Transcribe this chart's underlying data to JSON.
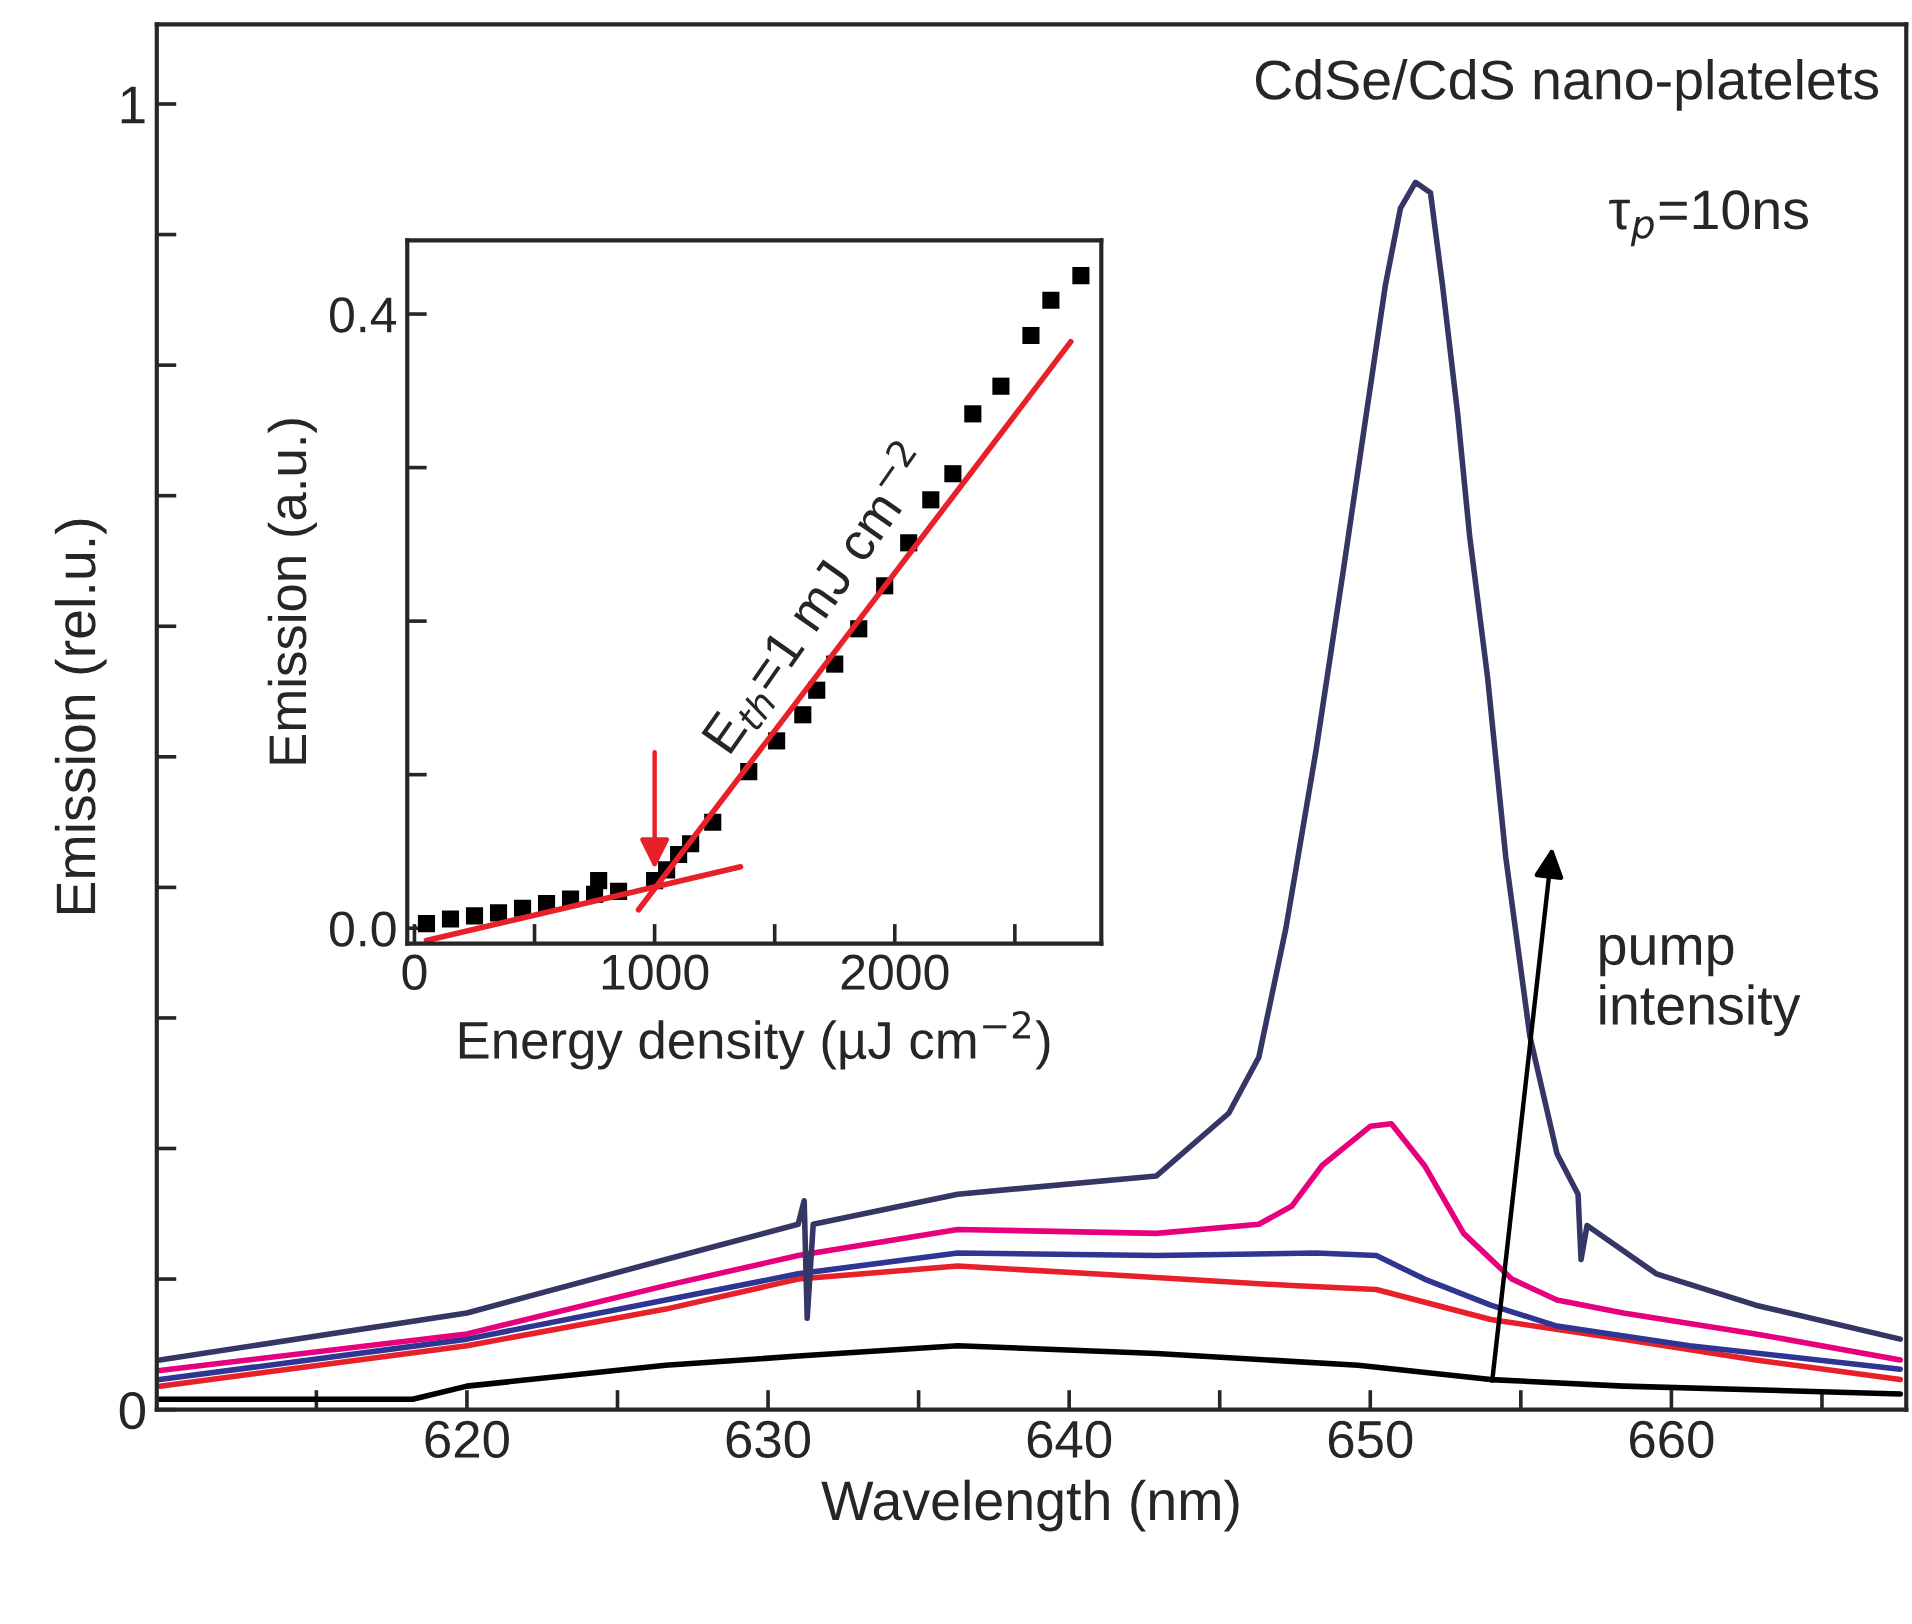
{
  "chart_data": [
    {
      "type": "line",
      "title": "CdSe/CdS nano-platelets",
      "xlabel": "Wavelength (nm)",
      "ylabel": "Emission (rel.u.)",
      "xlim": [
        609.7,
        667.8
      ],
      "xticks": [
        {
          "value": 615,
          "label": null
        },
        620,
        {
          "value": 625,
          "label": null
        },
        630,
        {
          "value": 635,
          "label": null
        },
        640,
        {
          "value": 645,
          "label": null
        },
        650,
        {
          "value": 655,
          "label": null
        },
        660,
        {
          "value": 665,
          "label": null
        }
      ],
      "ylim": [
        0,
        1.061
      ],
      "yticks": [
        {
          "value": 0,
          "label": "0"
        },
        {
          "value": 0.1,
          "label": null
        },
        {
          "value": 0.2,
          "label": null
        },
        {
          "value": 0.3,
          "label": null
        },
        {
          "value": 0.4,
          "label": null
        },
        {
          "value": 0.5,
          "label": null
        },
        {
          "value": 0.6,
          "label": null
        },
        {
          "value": 0.7,
          "label": null
        },
        {
          "value": 0.8,
          "label": null
        },
        {
          "value": 0.9,
          "label": null
        },
        {
          "value": 1,
          "label": "1"
        }
      ],
      "annotations": [
        "τ$_{p}$=10ns",
        "pump\nintensity"
      ],
      "series": [
        {
          "color": "#000000",
          "x": [
            609.8,
            618.2,
            620.0,
            626.6,
            631.0,
            636.3,
            642.9,
            649.6,
            654.0,
            658.4,
            667.6
          ],
          "values": [
            0.008,
            0.008,
            0.018,
            0.034,
            0.041,
            0.049,
            0.043,
            0.034,
            0.023,
            0.018,
            0.012
          ]
        },
        {
          "color": "#e8202a",
          "x": [
            609.8,
            620.0,
            626.6,
            631.0,
            636.3,
            640.8,
            647.4,
            650.2,
            654.0,
            658.4,
            662.8,
            667.6
          ],
          "values": [
            0.018,
            0.049,
            0.077,
            0.1,
            0.11,
            0.104,
            0.095,
            0.092,
            0.069,
            0.054,
            0.038,
            0.023
          ]
        },
        {
          "color": "#2e3592",
          "x": [
            609.8,
            620.0,
            626.6,
            631.0,
            636.3,
            642.9,
            648.2,
            650.2,
            651.8,
            654.0,
            656.2,
            660.6,
            667.6
          ],
          "values": [
            0.023,
            0.054,
            0.084,
            0.104,
            0.12,
            0.118,
            0.12,
            0.118,
            0.1,
            0.08,
            0.064,
            0.049,
            0.031
          ]
        },
        {
          "color": "#e6007e",
          "x": [
            609.8,
            620.0,
            626.6,
            631.0,
            636.3,
            642.9,
            646.3,
            647.4,
            648.4,
            650.0,
            650.7,
            651.8,
            653.1,
            654.7,
            656.2,
            658.4,
            662.8,
            667.6
          ],
          "values": [
            0.03,
            0.058,
            0.095,
            0.118,
            0.138,
            0.135,
            0.142,
            0.156,
            0.187,
            0.217,
            0.219,
            0.187,
            0.135,
            0.1,
            0.084,
            0.074,
            0.058,
            0.038
          ]
        },
        {
          "color": "#353566",
          "x": [
            609.8,
            620.0,
            626.6,
            631.0,
            631.2,
            631.3,
            631.5,
            636.3,
            642.9,
            645.3,
            646.3,
            647.2,
            648.2,
            649.1,
            649.8,
            650.5,
            651.0,
            651.5,
            652.0,
            652.4,
            652.9,
            653.3,
            653.9,
            654.5,
            655.3,
            656.2,
            656.9,
            657.0,
            657.2,
            659.5,
            662.8,
            667.6
          ],
          "values": [
            0.038,
            0.074,
            0.115,
            0.142,
            0.16,
            0.07,
            0.142,
            0.165,
            0.179,
            0.227,
            0.27,
            0.369,
            0.505,
            0.642,
            0.752,
            0.861,
            0.92,
            0.94,
            0.932,
            0.861,
            0.763,
            0.669,
            0.56,
            0.423,
            0.286,
            0.196,
            0.165,
            0.115,
            0.141,
            0.104,
            0.08,
            0.054
          ]
        }
      ]
    },
    {
      "type": "scatter",
      "xlabel": "Energy density (µJ cm$^{−2}$)",
      "ylabel": "Emission (a.u.)",
      "xlim": [
        -30,
        2860
      ],
      "xticks": [
        0,
        {
          "value": 500,
          "label": null
        },
        1000,
        {
          "value": 1500,
          "label": null
        },
        2000,
        {
          "value": 2500,
          "label": null
        }
      ],
      "ylim": [
        -0.01,
        0.448
      ],
      "yticks": [
        {
          "value": 0,
          "label": "0.0"
        },
        {
          "value": 0.1,
          "label": null
        },
        {
          "value": 0.2,
          "label": null
        },
        {
          "value": 0.3,
          "label": null
        },
        {
          "value": 0.4,
          "label": "0.4"
        }
      ],
      "annotations": [
        {
          "text": "E$_{th}$=1 mJ cm$^{−2}$",
          "x": 1000,
          "y": 0.035
        }
      ],
      "series": [
        {
          "type": "scatter",
          "marker": "square",
          "color": "#000000",
          "x": [
            50,
            150,
            250,
            350,
            450,
            550,
            650,
            750,
            767,
            850,
            1000,
            1050,
            1100,
            1150,
            1242,
            1392,
            1508,
            1617,
            1675,
            1750,
            1850,
            1958,
            2058,
            2150,
            2242,
            2325,
            2442,
            2567,
            2650,
            2775
          ],
          "values": [
            0.003,
            0.006,
            0.008,
            0.01,
            0.013,
            0.016,
            0.019,
            0.022,
            0.031,
            0.024,
            0.031,
            0.038,
            0.048,
            0.055,
            0.069,
            0.102,
            0.122,
            0.139,
            0.155,
            0.172,
            0.195,
            0.223,
            0.251,
            0.279,
            0.296,
            0.335,
            0.353,
            0.386,
            0.409,
            0.425
          ]
        },
        {
          "type": "line",
          "color": "#e8202a",
          "x": [
            50,
            1358
          ],
          "values": [
            -0.008,
            0.04
          ]
        },
        {
          "type": "line",
          "color": "#e8202a",
          "x": [
            933,
            2733
          ],
          "values": [
            0.012,
            0.382
          ]
        }
      ]
    }
  ]
}
